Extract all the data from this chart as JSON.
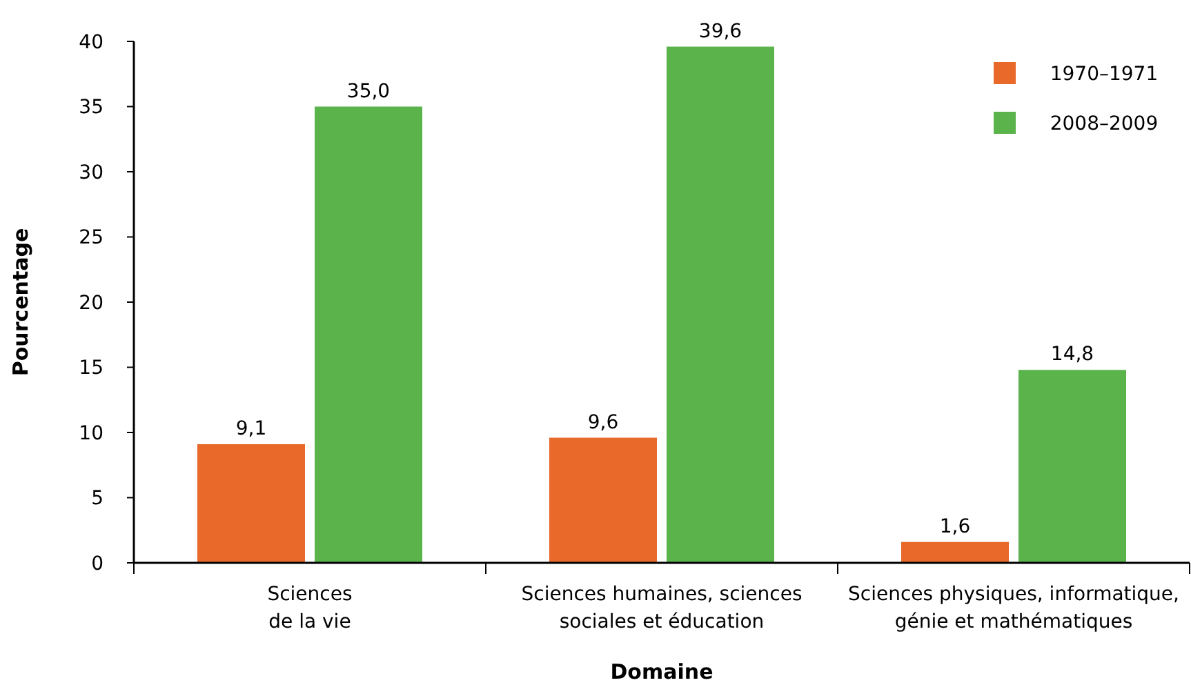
{
  "chart_data": {
    "type": "bar",
    "categories": [
      "Sciences\nde la vie",
      "Sciences humaines, sciences\nsociales et éducation",
      "Sciences physiques, informatique,\ngénie et mathématiques"
    ],
    "series": [
      {
        "name": "1970–1971",
        "color": "#e8692a",
        "values": [
          9.1,
          9.6,
          1.6
        ],
        "value_labels": [
          "9,1",
          "9,6",
          "1,6"
        ]
      },
      {
        "name": "2008–2009",
        "color": "#5ab44b",
        "values": [
          35.0,
          39.6,
          14.8
        ],
        "value_labels": [
          "35,0",
          "39,6",
          "14,8"
        ]
      }
    ],
    "xlabel": "Domaine",
    "ylabel": "Pourcentage",
    "ylim": [
      0,
      40
    ],
    "yticks": [
      0,
      5,
      10,
      15,
      20,
      25,
      30,
      35,
      40
    ],
    "legend": "top right"
  }
}
